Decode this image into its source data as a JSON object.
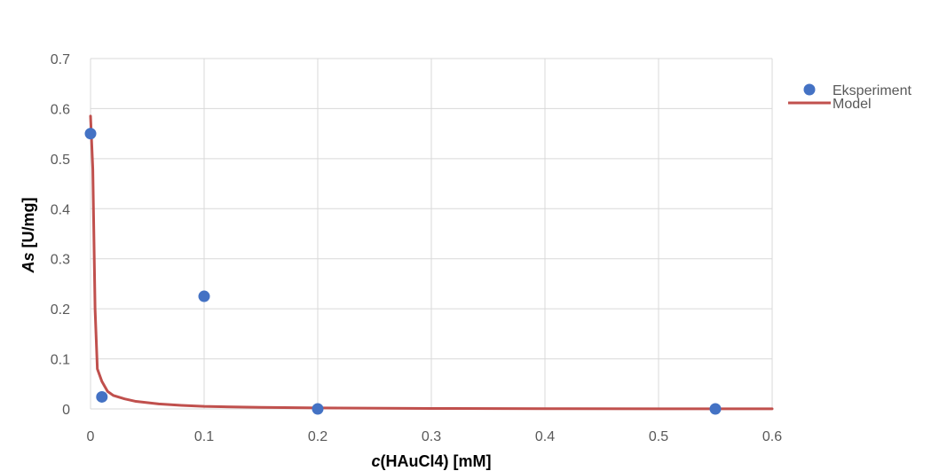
{
  "chart_data": {
    "type": "scatter",
    "title": "",
    "xlabel": {
      "italic": "c",
      "rest": "(HAuCl4) [mM]"
    },
    "ylabel": {
      "italic": "As",
      "rest": " [U/mg]"
    },
    "xlim": [
      0,
      0.6
    ],
    "ylim": [
      0,
      0.7
    ],
    "xticks": [
      0,
      0.1,
      0.2,
      0.3,
      0.4,
      0.5,
      0.6
    ],
    "yticks": [
      0,
      0.1,
      0.2,
      0.3,
      0.4,
      0.5,
      0.6,
      0.7
    ],
    "xtick_labels": [
      "0",
      "0.1",
      "0.2",
      "0.3",
      "0.4",
      "0.5",
      "0.6"
    ],
    "ytick_labels": [
      "0",
      "0.1",
      "0.2",
      "0.3",
      "0.4",
      "0.5",
      "0.6",
      "0.7"
    ],
    "grid": true,
    "legend_position": "top-right",
    "series": [
      {
        "name": "Eksperiment",
        "kind": "marker",
        "color": "#4472C4",
        "points": [
          {
            "x": 0,
            "y": 0.55
          },
          {
            "x": 0.01,
            "y": 0.024
          },
          {
            "x": 0.1,
            "y": 0.225
          },
          {
            "x": 0.2,
            "y": 0.0
          },
          {
            "x": 0.55,
            "y": 0.0
          }
        ]
      },
      {
        "name": "Model",
        "kind": "line",
        "color": "#C0504D",
        "points": [
          {
            "x": 0,
            "y": 0.585
          },
          {
            "x": 0.002,
            "y": 0.48
          },
          {
            "x": 0.004,
            "y": 0.2
          },
          {
            "x": 0.006,
            "y": 0.08
          },
          {
            "x": 0.01,
            "y": 0.055
          },
          {
            "x": 0.015,
            "y": 0.035
          },
          {
            "x": 0.02,
            "y": 0.027
          },
          {
            "x": 0.03,
            "y": 0.02
          },
          {
            "x": 0.04,
            "y": 0.015
          },
          {
            "x": 0.06,
            "y": 0.01
          },
          {
            "x": 0.08,
            "y": 0.007
          },
          {
            "x": 0.1,
            "y": 0.005
          },
          {
            "x": 0.15,
            "y": 0.003
          },
          {
            "x": 0.2,
            "y": 0.002
          },
          {
            "x": 0.3,
            "y": 0.001
          },
          {
            "x": 0.4,
            "y": 0.0005
          },
          {
            "x": 0.5,
            "y": 0.0003
          },
          {
            "x": 0.6,
            "y": 0.0002
          }
        ]
      }
    ]
  }
}
